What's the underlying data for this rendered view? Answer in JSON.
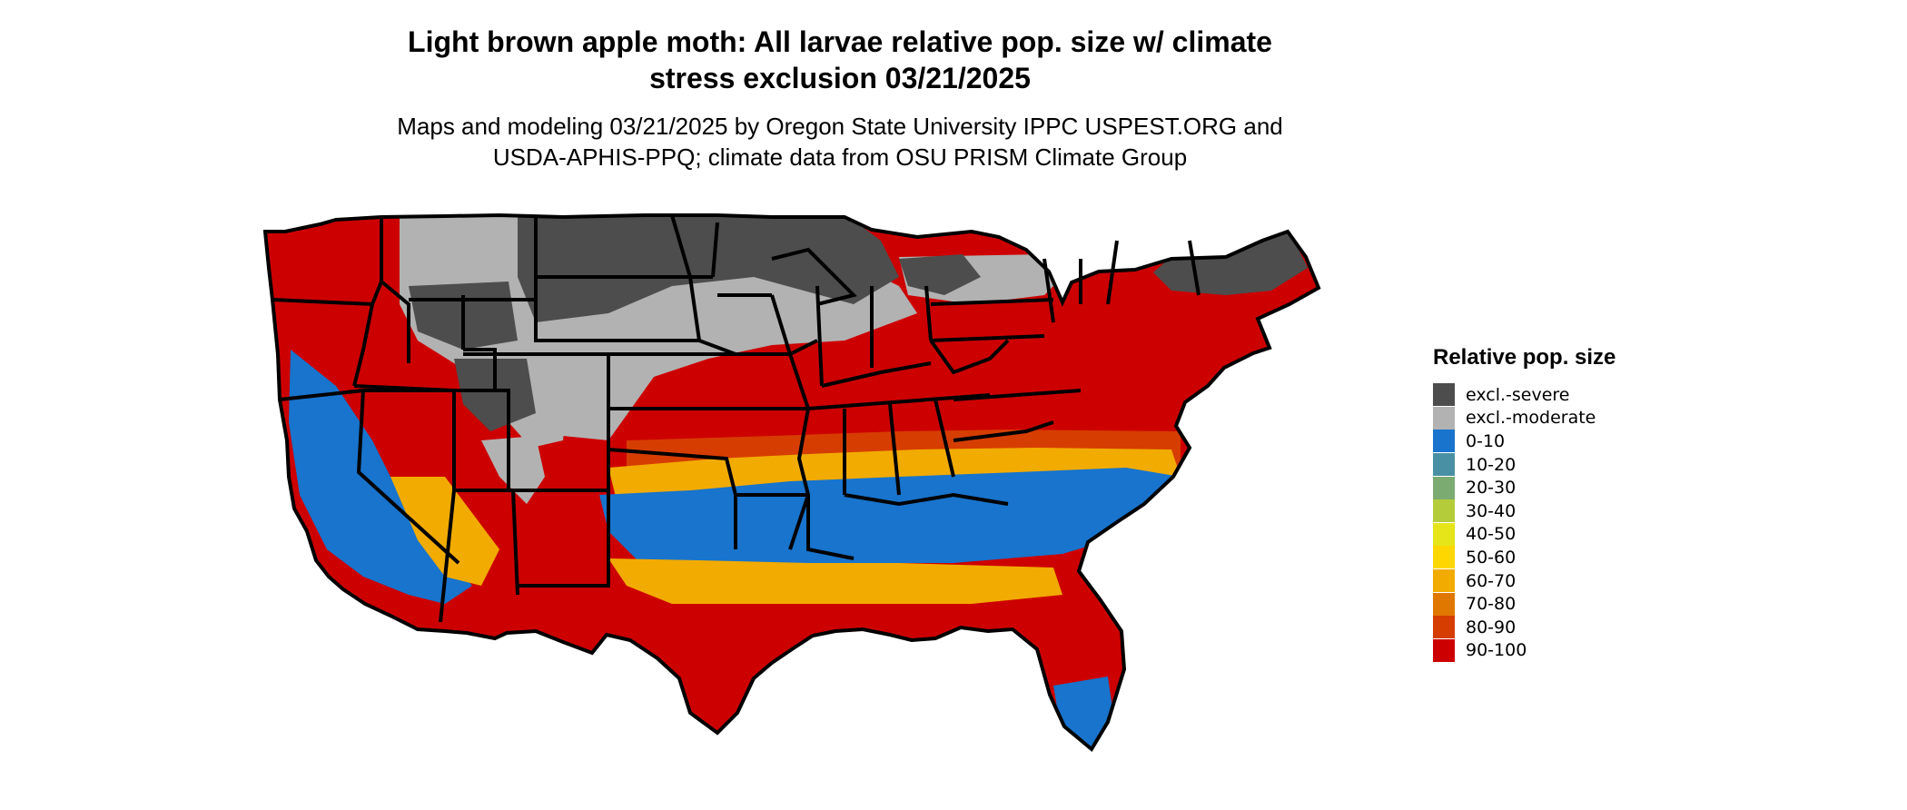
{
  "title_lines": [
    "Light brown apple moth: All larvae relative pop. size w/ climate",
    "stress exclusion 03/21/2025"
  ],
  "subtitle_lines": [
    "Maps and modeling 03/21/2025 by Oregon State University IPPC USPEST.ORG and",
    "USDA-APHIS-PPQ; climate data from OSU PRISM Climate Group"
  ],
  "legend": {
    "title": "Relative pop. size",
    "items": [
      {
        "label": "excl.-severe",
        "color": "#4d4d4d"
      },
      {
        "label": "excl.-moderate",
        "color": "#b2b2b2"
      },
      {
        "label": "0-10",
        "color": "#1874cd"
      },
      {
        "label": "10-20",
        "color": "#4a90a4"
      },
      {
        "label": "20-30",
        "color": "#7cab72"
      },
      {
        "label": "30-40",
        "color": "#b5cc3a"
      },
      {
        "label": "40-50",
        "color": "#e5e51a"
      },
      {
        "label": "50-60",
        "color": "#ffd700"
      },
      {
        "label": "60-70",
        "color": "#f2ab00"
      },
      {
        "label": "70-80",
        "color": "#e07800"
      },
      {
        "label": "80-90",
        "color": "#d63d00"
      },
      {
        "label": "90-100",
        "color": "#cd0000"
      }
    ]
  },
  "map": {
    "region": "Contiguous United States",
    "colors": {
      "severe": "#4d4d4d",
      "moderate": "#b2b2b2",
      "c0_10": "#1874cd",
      "c40_70": "#f2ab00",
      "c80_90": "#d63d00",
      "c90_100": "#cd0000",
      "border": "#000000"
    }
  }
}
